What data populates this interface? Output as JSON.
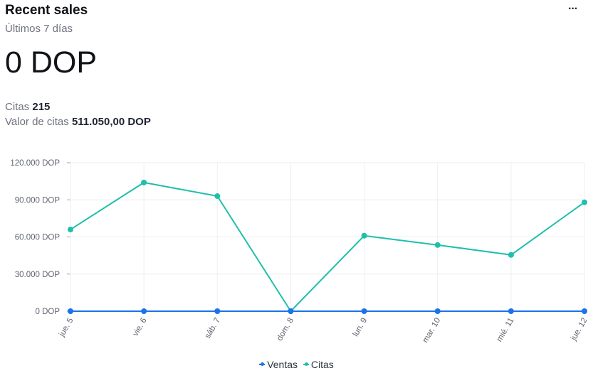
{
  "header": {
    "title": "Recent sales",
    "subtitle": "Últimos 7 días",
    "more_label": "···"
  },
  "summary": {
    "total": "0 DOP",
    "citas_label": "Citas",
    "citas_value": "215",
    "valor_label": "Valor de citas",
    "valor_value": "511.050,00 DOP"
  },
  "colors": {
    "ventas": "#1a73e8",
    "citas": "#1fbfac",
    "grid": "#eceef1",
    "axis_text": "#5f6470"
  },
  "chart_data": {
    "type": "line",
    "categories": [
      "jue. 5",
      "vie. 6",
      "sáb. 7",
      "dom. 8",
      "lun. 9",
      "mar. 10",
      "mié. 11",
      "jue. 12"
    ],
    "series": [
      {
        "name": "Ventas",
        "values": [
          0,
          0,
          0,
          0,
          0,
          0,
          0,
          0
        ]
      },
      {
        "name": "Citas",
        "values": [
          66000,
          104000,
          93000,
          0,
          61000,
          53500,
          45500,
          88000
        ]
      }
    ],
    "y_ticks": [
      "0 DOP",
      "30.000 DOP",
      "60.000 DOP",
      "90.000 DOP",
      "120.000 DOP"
    ],
    "y_tick_values": [
      0,
      30000,
      60000,
      90000,
      120000
    ],
    "ylim": [
      0,
      120000
    ],
    "grid": true,
    "legend_position": "bottom"
  }
}
